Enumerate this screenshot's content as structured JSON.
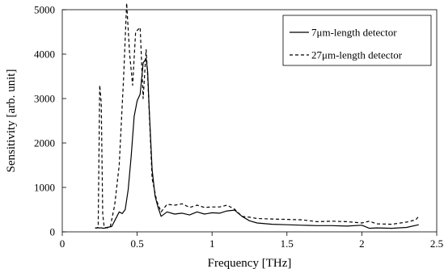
{
  "chart_data": {
    "type": "line",
    "title": "",
    "xlabel": "Frequency [THz]",
    "ylabel": "Sensitivity [arb. unit]",
    "xlim": [
      0,
      2.5
    ],
    "ylim": [
      0,
      5000
    ],
    "xticks": [
      0,
      0.5,
      1,
      1.5,
      2,
      2.5
    ],
    "xtick_labels": [
      "0",
      "0.5",
      "1",
      "1.5",
      "2",
      "2.5"
    ],
    "yticks": [
      0,
      1000,
      2000,
      3000,
      4000,
      5000
    ],
    "ytick_labels": [
      "0",
      "1000",
      "2000",
      "3000",
      "4000",
      "5000"
    ],
    "grid": false,
    "legend_position": "top-right",
    "series": [
      {
        "name": "7μm-length detector",
        "style": "solid",
        "color": "#000000",
        "x": [
          0.22,
          0.26,
          0.28,
          0.3,
          0.33,
          0.35,
          0.38,
          0.4,
          0.42,
          0.44,
          0.46,
          0.48,
          0.5,
          0.52,
          0.54,
          0.56,
          0.57,
          0.58,
          0.6,
          0.62,
          0.64,
          0.66,
          0.7,
          0.75,
          0.8,
          0.85,
          0.9,
          0.95,
          1.0,
          1.05,
          1.1,
          1.15,
          1.2,
          1.25,
          1.3,
          1.4,
          1.5,
          1.6,
          1.7,
          1.8,
          1.9,
          2.0,
          2.05,
          2.1,
          2.2,
          2.3,
          2.38
        ],
        "y": [
          90,
          90,
          80,
          100,
          120,
          250,
          450,
          410,
          500,
          950,
          1700,
          2600,
          2950,
          3100,
          3800,
          3900,
          3600,
          2800,
          1400,
          800,
          550,
          350,
          450,
          400,
          420,
          380,
          450,
          400,
          430,
          420,
          470,
          490,
          350,
          250,
          200,
          170,
          160,
          150,
          140,
          140,
          130,
          150,
          80,
          90,
          80,
          100,
          160
        ]
      },
      {
        "name": "27μm-length detector",
        "style": "dashed",
        "color": "#000000",
        "x": [
          0.22,
          0.24,
          0.25,
          0.26,
          0.27,
          0.28,
          0.3,
          0.32,
          0.35,
          0.38,
          0.41,
          0.43,
          0.45,
          0.47,
          0.49,
          0.52,
          0.54,
          0.56,
          0.57,
          0.6,
          0.63,
          0.66,
          0.7,
          0.75,
          0.8,
          0.85,
          0.9,
          0.95,
          1.0,
          1.05,
          1.1,
          1.15,
          1.2,
          1.25,
          1.3,
          1.4,
          1.5,
          1.6,
          1.7,
          1.8,
          1.9,
          2.0,
          2.05,
          2.1,
          2.2,
          2.3,
          2.36,
          2.38
        ],
        "y": [
          80,
          100,
          3300,
          2900,
          400,
          100,
          90,
          110,
          600,
          1500,
          3500,
          5150,
          4000,
          3300,
          4500,
          4600,
          3000,
          4100,
          3500,
          1200,
          700,
          450,
          620,
          600,
          630,
          550,
          600,
          550,
          560,
          560,
          600,
          510,
          350,
          330,
          300,
          290,
          280,
          270,
          230,
          240,
          230,
          200,
          240,
          180,
          170,
          220,
          270,
          350
        ]
      }
    ]
  }
}
